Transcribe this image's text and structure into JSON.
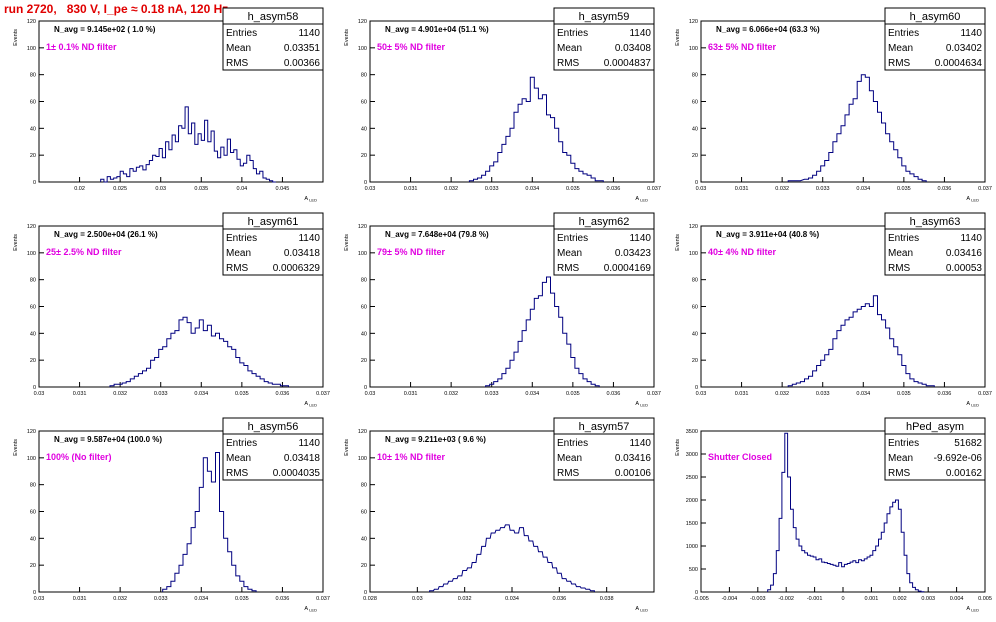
{
  "page_title": "run 2720,   830 V, I_pe ≈ 0.18 nA, 120 Hz",
  "colors": {
    "histogram": "#000080",
    "annotation_dark": "#000000",
    "annotation_magenta": "#e000e0",
    "title_red": "#e00000"
  },
  "chart_data": [
    {
      "type": "histogram",
      "title": "h_asym58",
      "ylabel": "Events",
      "xlabel": "A_LED",
      "xlim": [
        0.015,
        0.05
      ],
      "ylim": [
        0,
        120
      ],
      "xticks": [
        "0.02",
        "0.025",
        "0.03",
        "0.035",
        "0.04",
        "0.045"
      ],
      "xtick_values": [
        0.02,
        0.025,
        0.03,
        0.035,
        0.04,
        0.045
      ],
      "yticks": [
        0,
        20,
        40,
        60,
        80,
        100,
        120
      ],
      "stats": {
        "Entries": "1140",
        "Mean": "0.03351",
        "RMS": "0.00366"
      },
      "annotations": [
        "N_avg = 9.145e+02 ( 1.0 %)",
        "1± 0.1% ND filter"
      ],
      "bin_width": 0.00039,
      "x": [
        0.0228,
        0.0232,
        0.0236,
        0.024,
        0.0244,
        0.0248,
        0.0252,
        0.0256,
        0.026,
        0.0264,
        0.0268,
        0.0272,
        0.0276,
        0.028,
        0.0284,
        0.0288,
        0.0292,
        0.0296,
        0.03,
        0.0304,
        0.0308,
        0.0312,
        0.0316,
        0.032,
        0.0324,
        0.0328,
        0.0332,
        0.0336,
        0.034,
        0.0344,
        0.0348,
        0.0352,
        0.0356,
        0.036,
        0.0364,
        0.0368,
        0.0372,
        0.0376,
        0.038,
        0.0384,
        0.0388,
        0.0392,
        0.0396,
        0.04,
        0.0404,
        0.0408,
        0.0412,
        0.0416,
        0.042,
        0.0424,
        0.0428,
        0.0432,
        0.0436,
        0.044
      ],
      "y": [
        2,
        0,
        4,
        2,
        3,
        4,
        8,
        6,
        4,
        10,
        8,
        11,
        12,
        9,
        13,
        16,
        20,
        19,
        25,
        18,
        30,
        24,
        35,
        30,
        42,
        40,
        56,
        36,
        44,
        28,
        36,
        31,
        46,
        30,
        38,
        23,
        18,
        26,
        20,
        32,
        22,
        24,
        17,
        12,
        14,
        20,
        16,
        10,
        6,
        8,
        3,
        2,
        1,
        0
      ]
    },
    {
      "type": "histogram",
      "title": "h_asym59",
      "ylabel": "Events",
      "xlabel": "A_LED",
      "xlim": [
        0.03,
        0.037
      ],
      "ylim": [
        0,
        120
      ],
      "xticks": [
        "0.03",
        "0.031",
        "0.032",
        "0.033",
        "0.034",
        "0.035",
        "0.036",
        "0.037"
      ],
      "xtick_values": [
        0.03,
        0.031,
        0.032,
        0.033,
        0.034,
        0.035,
        0.036,
        0.037
      ],
      "yticks": [
        0,
        20,
        40,
        60,
        80,
        100,
        120
      ],
      "stats": {
        "Entries": "1140",
        "Mean": "0.03408",
        "RMS": "0.0004837"
      },
      "annotations": [
        "N_avg = 4.901e+04 (51.1 %)",
        "50± 5% ND filter"
      ],
      "bin_width": 0.0001,
      "x": [
        0.0325,
        0.0326,
        0.0327,
        0.0328,
        0.0329,
        0.033,
        0.0331,
        0.0332,
        0.0333,
        0.0334,
        0.0335,
        0.0336,
        0.0337,
        0.0338,
        0.0339,
        0.034,
        0.0341,
        0.0342,
        0.0343,
        0.0344,
        0.0345,
        0.0346,
        0.0347,
        0.0348,
        0.0349,
        0.035,
        0.0351,
        0.0352,
        0.0353,
        0.0354,
        0.0355,
        0.0356,
        0.0357
      ],
      "y": [
        1,
        2,
        3,
        5,
        8,
        12,
        15,
        22,
        28,
        34,
        40,
        52,
        58,
        62,
        60,
        78,
        70,
        62,
        65,
        50,
        48,
        40,
        30,
        22,
        20,
        14,
        10,
        8,
        6,
        5,
        3,
        1,
        1
      ]
    },
    {
      "type": "histogram",
      "title": "h_asym60",
      "ylabel": "Events",
      "xlabel": "A_LED",
      "xlim": [
        0.03,
        0.037
      ],
      "ylim": [
        0,
        120
      ],
      "xticks": [
        "0.03",
        "0.031",
        "0.032",
        "0.033",
        "0.034",
        "0.035",
        "0.036",
        "0.037"
      ],
      "xtick_values": [
        0.03,
        0.031,
        0.032,
        0.033,
        0.034,
        0.035,
        0.036,
        0.037
      ],
      "yticks": [
        0,
        20,
        40,
        60,
        80,
        100,
        120
      ],
      "stats": {
        "Entries": "1140",
        "Mean": "0.03402",
        "RMS": "0.0004634"
      },
      "annotations": [
        "N_avg = 6.066e+04 (63.3 %)",
        "63± 5% ND filter"
      ],
      "bin_width": 0.0001,
      "x": [
        0.0322,
        0.0324,
        0.0326,
        0.0327,
        0.0328,
        0.0329,
        0.033,
        0.0331,
        0.0332,
        0.0333,
        0.0334,
        0.0335,
        0.0336,
        0.0337,
        0.0338,
        0.0339,
        0.034,
        0.0341,
        0.0342,
        0.0343,
        0.0344,
        0.0345,
        0.0346,
        0.0347,
        0.0348,
        0.0349,
        0.035,
        0.0351,
        0.0352,
        0.0353,
        0.0354,
        0.0355
      ],
      "y": [
        1,
        1,
        2,
        3,
        5,
        8,
        12,
        16,
        22,
        30,
        36,
        42,
        50,
        58,
        62,
        75,
        80,
        78,
        68,
        60,
        52,
        44,
        36,
        30,
        24,
        18,
        12,
        8,
        6,
        4,
        2,
        1
      ]
    },
    {
      "type": "histogram",
      "title": "h_asym61",
      "ylabel": "Events",
      "xlabel": "A_LED",
      "xlim": [
        0.03,
        0.037
      ],
      "ylim": [
        0,
        120
      ],
      "xticks": [
        "0.03",
        "0.031",
        "0.032",
        "0.033",
        "0.034",
        "0.035",
        "0.036",
        "0.037"
      ],
      "xtick_values": [
        0.03,
        0.031,
        0.032,
        0.033,
        0.034,
        0.035,
        0.036,
        0.037
      ],
      "yticks": [
        0,
        20,
        40,
        60,
        80,
        100,
        120
      ],
      "stats": {
        "Entries": "1140",
        "Mean": "0.03418",
        "RMS": "0.0006329"
      },
      "annotations": [
        "N_avg = 2.500e+04 (26.1 %)",
        "25± 2.5% ND filter"
      ],
      "bin_width": 0.0001,
      "x": [
        0.0318,
        0.0319,
        0.032,
        0.0321,
        0.0322,
        0.0323,
        0.0324,
        0.0325,
        0.0326,
        0.0327,
        0.0328,
        0.0329,
        0.033,
        0.0331,
        0.0332,
        0.0333,
        0.0334,
        0.0335,
        0.0336,
        0.0337,
        0.0338,
        0.0339,
        0.034,
        0.0341,
        0.0342,
        0.0343,
        0.0344,
        0.0345,
        0.0346,
        0.0347,
        0.0348,
        0.0349,
        0.035,
        0.0351,
        0.0352,
        0.0353,
        0.0354,
        0.0355,
        0.0356,
        0.0357,
        0.0358,
        0.0359,
        0.036,
        0.0361
      ],
      "y": [
        1,
        2,
        2,
        3,
        4,
        6,
        8,
        10,
        12,
        14,
        20,
        22,
        28,
        30,
        36,
        40,
        42,
        50,
        52,
        48,
        40,
        44,
        50,
        42,
        46,
        38,
        40,
        36,
        34,
        30,
        28,
        22,
        18,
        16,
        12,
        10,
        8,
        6,
        4,
        3,
        2,
        2,
        1,
        1
      ]
    },
    {
      "type": "histogram",
      "title": "h_asym62",
      "ylabel": "Events",
      "xlabel": "A_LED",
      "xlim": [
        0.03,
        0.037
      ],
      "ylim": [
        0,
        120
      ],
      "xticks": [
        "0.03",
        "0.031",
        "0.032",
        "0.033",
        "0.034",
        "0.035",
        "0.036",
        "0.037"
      ],
      "xtick_values": [
        0.03,
        0.031,
        0.032,
        0.033,
        0.034,
        0.035,
        0.036,
        0.037
      ],
      "yticks": [
        0,
        20,
        40,
        60,
        80,
        100,
        120
      ],
      "stats": {
        "Entries": "1140",
        "Mean": "0.03423",
        "RMS": "0.0004169"
      },
      "annotations": [
        "N_avg = 7.648e+04 (79.8 %)",
        "79± 5% ND filter"
      ],
      "bin_width": 0.0001,
      "x": [
        0.0329,
        0.033,
        0.0331,
        0.0332,
        0.0333,
        0.0334,
        0.0335,
        0.0336,
        0.0337,
        0.0338,
        0.0339,
        0.034,
        0.0341,
        0.0342,
        0.0343,
        0.0344,
        0.0345,
        0.0346,
        0.0347,
        0.0348,
        0.0349,
        0.035,
        0.0351,
        0.0352,
        0.0353,
        0.0354,
        0.0355,
        0.0356
      ],
      "y": [
        1,
        2,
        4,
        6,
        10,
        14,
        20,
        26,
        34,
        42,
        50,
        58,
        66,
        68,
        78,
        82,
        70,
        60,
        52,
        40,
        32,
        22,
        14,
        10,
        6,
        4,
        2,
        1
      ]
    },
    {
      "type": "histogram",
      "title": "h_asym63",
      "ylabel": "Events",
      "xlabel": "A_LED",
      "xlim": [
        0.03,
        0.037
      ],
      "ylim": [
        0,
        120
      ],
      "xticks": [
        "0.03",
        "0.031",
        "0.032",
        "0.033",
        "0.034",
        "0.035",
        "0.036",
        "0.037"
      ],
      "xtick_values": [
        0.03,
        0.031,
        0.032,
        0.033,
        0.034,
        0.035,
        0.036,
        0.037
      ],
      "yticks": [
        0,
        20,
        40,
        60,
        80,
        100,
        120
      ],
      "stats": {
        "Entries": "1140",
        "Mean": "0.03416",
        "RMS": "0.00053"
      },
      "annotations": [
        "N_avg = 3.911e+04 (40.8 %)",
        "40± 4% ND filter"
      ],
      "bin_width": 0.0001,
      "x": [
        0.0322,
        0.0323,
        0.0324,
        0.0325,
        0.0326,
        0.0327,
        0.0328,
        0.0329,
        0.033,
        0.0331,
        0.0332,
        0.0333,
        0.0334,
        0.0335,
        0.0336,
        0.0337,
        0.0338,
        0.0339,
        0.034,
        0.0341,
        0.0342,
        0.0343,
        0.0344,
        0.0345,
        0.0346,
        0.0347,
        0.0348,
        0.0349,
        0.035,
        0.0351,
        0.0352,
        0.0353,
        0.0354,
        0.0355,
        0.0356,
        0.0357
      ],
      "y": [
        1,
        2,
        3,
        4,
        6,
        8,
        12,
        16,
        20,
        24,
        28,
        36,
        42,
        46,
        50,
        52,
        56,
        58,
        60,
        62,
        60,
        68,
        54,
        50,
        44,
        36,
        30,
        24,
        16,
        10,
        6,
        4,
        3,
        2,
        1,
        1
      ]
    },
    {
      "type": "histogram",
      "title": "h_asym56",
      "ylabel": "Events",
      "xlabel": "A_LED",
      "xlim": [
        0.03,
        0.037
      ],
      "ylim": [
        0,
        120
      ],
      "xticks": [
        "0.03",
        "0.031",
        "0.032",
        "0.033",
        "0.034",
        "0.035",
        "0.036",
        "0.037"
      ],
      "xtick_values": [
        0.03,
        0.031,
        0.032,
        0.033,
        0.034,
        0.035,
        0.036,
        0.037
      ],
      "yticks": [
        0,
        20,
        40,
        60,
        80,
        100,
        120
      ],
      "stats": {
        "Entries": "1140",
        "Mean": "0.03418",
        "RMS": "0.0004035"
      },
      "annotations": [
        "N_avg = 9.587e+04 (100.0 %)",
        "100% (No filter)"
      ],
      "bin_width": 0.0001,
      "x": [
        0.0331,
        0.0332,
        0.0333,
        0.0334,
        0.0335,
        0.0336,
        0.0337,
        0.0338,
        0.0339,
        0.034,
        0.0341,
        0.0342,
        0.0343,
        0.0344,
        0.0345,
        0.0346,
        0.0347,
        0.0348,
        0.0349,
        0.035,
        0.0351,
        0.0352,
        0.0353
      ],
      "y": [
        2,
        4,
        8,
        14,
        20,
        28,
        36,
        48,
        60,
        78,
        100,
        90,
        82,
        104,
        60,
        40,
        30,
        20,
        12,
        8,
        4,
        2,
        1
      ]
    },
    {
      "type": "histogram",
      "title": "h_asym57",
      "ylabel": "Events",
      "xlabel": "A_LED",
      "xlim": [
        0.028,
        0.04
      ],
      "ylim": [
        0,
        120
      ],
      "xticks": [
        "0.028",
        "0.03",
        "0.032",
        "0.034",
        "0.036",
        "0.038"
      ],
      "xtick_values": [
        0.028,
        0.03,
        0.032,
        0.034,
        0.036,
        0.038
      ],
      "yticks": [
        0,
        20,
        40,
        60,
        80,
        100,
        120
      ],
      "stats": {
        "Entries": "1140",
        "Mean": "0.03416",
        "RMS": "0.00106"
      },
      "annotations": [
        "N_avg = 9.211e+03 ( 9.6 %)",
        "10± 1% ND filter"
      ],
      "bin_width": 0.00016,
      "x": [
        0.0306,
        0.0308,
        0.031,
        0.0312,
        0.0314,
        0.0316,
        0.0318,
        0.032,
        0.0322,
        0.0324,
        0.0326,
        0.0328,
        0.033,
        0.0332,
        0.0334,
        0.0336,
        0.0338,
        0.034,
        0.0342,
        0.0344,
        0.0346,
        0.0348,
        0.035,
        0.0352,
        0.0354,
        0.0356,
        0.0358,
        0.036,
        0.0362,
        0.0364,
        0.0366,
        0.0368,
        0.037,
        0.0372,
        0.0374
      ],
      "y": [
        1,
        2,
        4,
        6,
        8,
        10,
        12,
        16,
        18,
        22,
        28,
        34,
        40,
        44,
        46,
        48,
        50,
        46,
        44,
        48,
        42,
        38,
        34,
        30,
        26,
        22,
        18,
        14,
        10,
        8,
        6,
        4,
        3,
        2,
        1
      ]
    },
    {
      "type": "histogram",
      "title": "hPed_asym",
      "ylabel": "Events",
      "xlabel": "A_LED",
      "xlim": [
        -0.005,
        0.005
      ],
      "ylim": [
        0,
        3500
      ],
      "xticks": [
        "-0.005",
        "-0.004",
        "-0.003",
        "-0.002",
        "-0.001",
        "0",
        "0.001",
        "0.002",
        "0.003",
        "0.004",
        "0.005"
      ],
      "xtick_values": [
        -0.005,
        -0.004,
        -0.003,
        -0.002,
        -0.001,
        0,
        0.001,
        0.002,
        0.003,
        0.004,
        0.005
      ],
      "yticks": [
        0,
        500,
        1000,
        1500,
        2000,
        2500,
        3000,
        3500
      ],
      "stats": {
        "Entries": "51682",
        "Mean": "-9.692e-06",
        "RMS": "0.00162"
      },
      "annotations": [
        "Shutter Closed"
      ],
      "bin_width": 0.0001,
      "x": [
        -0.0026,
        -0.0025,
        -0.0024,
        -0.0023,
        -0.0022,
        -0.0021,
        -0.002,
        -0.0019,
        -0.0018,
        -0.0017,
        -0.0016,
        -0.0015,
        -0.0014,
        -0.0013,
        -0.0012,
        -0.0011,
        -0.001,
        -0.0009,
        -0.0008,
        -0.0007,
        -0.0006,
        -0.0005,
        -0.0004,
        -0.0003,
        -0.0002,
        -0.0001,
        0,
        0.0001,
        0.0002,
        0.0003,
        0.0004,
        0.0005,
        0.0006,
        0.0007,
        0.0008,
        0.0009,
        0.001,
        0.0011,
        0.0012,
        0.0013,
        0.0014,
        0.0015,
        0.0016,
        0.0017,
        0.0018,
        0.0019,
        0.002,
        0.0021,
        0.0022,
        0.0023,
        0.0024,
        0.0025,
        0.0026,
        0.0027,
        0.0028
      ],
      "y": [
        50,
        150,
        400,
        900,
        1600,
        2600,
        3450,
        2500,
        1800,
        1400,
        1150,
        1000,
        900,
        850,
        800,
        780,
        760,
        700,
        720,
        650,
        640,
        620,
        600,
        580,
        560,
        640,
        550,
        600,
        620,
        650,
        680,
        640,
        700,
        680,
        720,
        760,
        800,
        900,
        1000,
        1150,
        1300,
        1500,
        1700,
        1850,
        1950,
        2000,
        1800,
        1300,
        800,
        400,
        200,
        100,
        50,
        20,
        5
      ]
    }
  ]
}
